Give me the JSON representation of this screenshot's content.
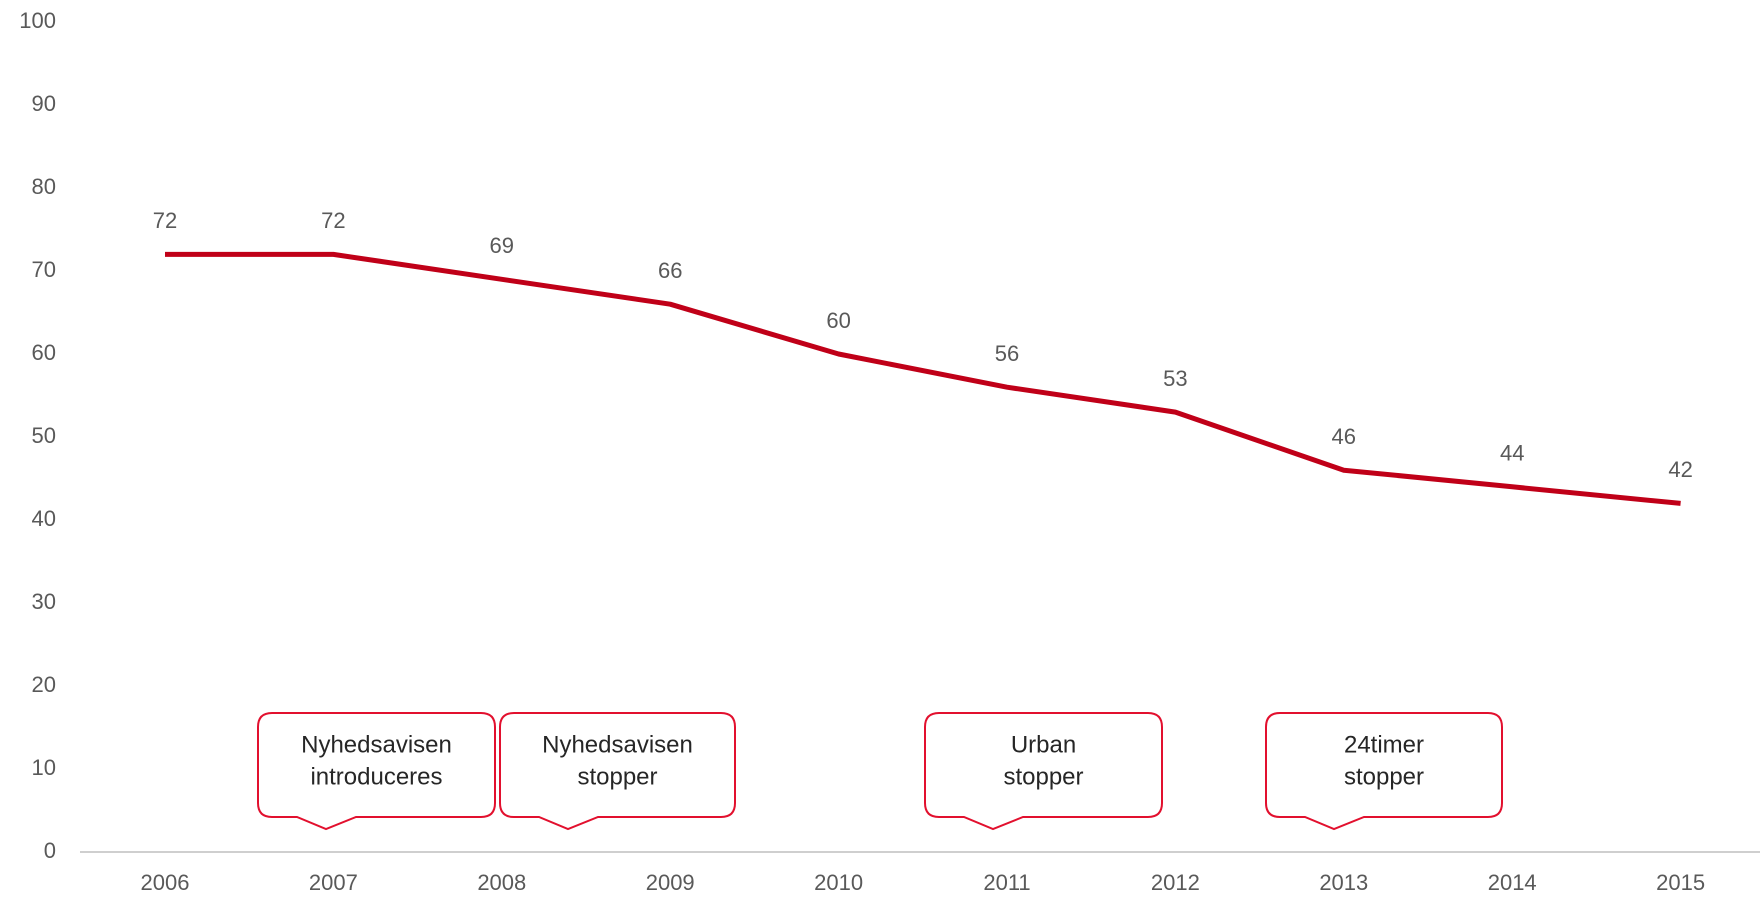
{
  "chart_data": {
    "type": "line",
    "categories": [
      "2006",
      "2007",
      "2008",
      "2009",
      "2010",
      "2011",
      "2012",
      "2013",
      "2014",
      "2015"
    ],
    "values": [
      72,
      72,
      69,
      66,
      60,
      56,
      53,
      46,
      44,
      42
    ],
    "color": "#c00018",
    "ylim": [
      0,
      100
    ],
    "yticks": [
      0,
      10,
      20,
      30,
      40,
      50,
      60,
      70,
      80,
      90,
      100
    ],
    "grid": false,
    "annotations": [
      {
        "lines": [
          "Nyhedsavisen",
          "introduceres"
        ]
      },
      {
        "lines": [
          "Nyhedsavisen",
          "stopper"
        ]
      },
      {
        "lines": [
          "Urban",
          "stopper"
        ]
      },
      {
        "lines": [
          "24timer",
          "stopper"
        ]
      }
    ]
  }
}
